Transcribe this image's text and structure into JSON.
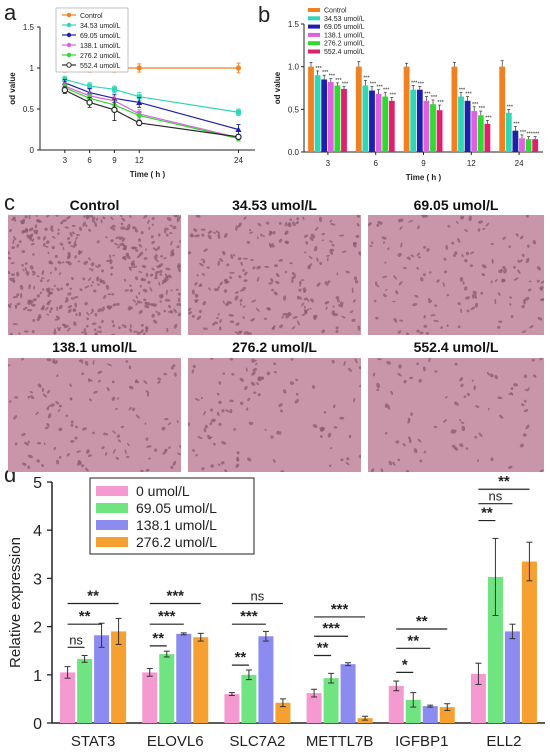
{
  "panels": {
    "a": "a",
    "b": "b",
    "c": "c",
    "d": "d"
  },
  "colors": {
    "Control": "#F08020",
    "34.53 umol/L": "#2ED8B4",
    "69.05 umol/L": "#1F1FAE",
    "138.1 umol/L": "#E060E0",
    "276.2 umol/L": "#30D830",
    "552.4 umol/L": "#E0206A",
    "line_552": "#2A2A2A",
    "d_0": "#F59AD0",
    "d_69": "#70E480",
    "d_138": "#8C8CF0",
    "d_276": "#F5A030",
    "micro_bg": "#C896A8",
    "micro_cell": "#8A5A6E"
  },
  "micrographs": {
    "labels": [
      "Control",
      "34.53 umol/L",
      "69.05 umol/L",
      "138.1 umol/L",
      "276.2 umol/L",
      "552.4  umol/L"
    ],
    "density": [
      1.0,
      0.55,
      0.35,
      0.3,
      0.25,
      0.2
    ]
  },
  "chart_data": [
    {
      "id": "a",
      "type": "line",
      "xlabel": "Time ( h )",
      "ylabel": "od value",
      "x": [
        3,
        6,
        9,
        12,
        24
      ],
      "xlim": [
        0,
        26
      ],
      "ylim": [
        0,
        1.5
      ],
      "yticks": [
        0,
        0.5,
        1,
        1.5
      ],
      "legend_position": "top-left",
      "series": [
        {
          "name": "Control",
          "values": [
            1.0,
            1.0,
            1.0,
            1.0,
            1.0
          ],
          "err": [
            0.05,
            0.05,
            0.05,
            0.05,
            0.06
          ],
          "marker": "circle"
        },
        {
          "name": "34.53 umol/L",
          "values": [
            0.86,
            0.78,
            0.74,
            0.65,
            0.46
          ],
          "err": [
            0.04,
            0.04,
            0.04,
            0.05,
            0.04
          ],
          "marker": "square"
        },
        {
          "name": "69.05 umol/L",
          "values": [
            0.82,
            0.7,
            0.63,
            0.58,
            0.25
          ],
          "err": [
            0.04,
            0.05,
            0.05,
            0.06,
            0.06
          ],
          "marker": "triangle-up"
        },
        {
          "name": "138.1 umol/L",
          "values": [
            0.78,
            0.66,
            0.6,
            0.44,
            0.15
          ],
          "err": [
            0.04,
            0.05,
            0.06,
            0.05,
            0.04
          ],
          "marker": "triangle-down"
        },
        {
          "name": "276.2 umol/L",
          "values": [
            0.76,
            0.63,
            0.55,
            0.42,
            0.14
          ],
          "err": [
            0.04,
            0.05,
            0.06,
            0.05,
            0.03
          ],
          "marker": "diamond"
        },
        {
          "name": "552.4 umol/L",
          "values": [
            0.73,
            0.58,
            0.49,
            0.33,
            0.16
          ],
          "err": [
            0.04,
            0.06,
            0.13,
            0.03,
            0.03
          ],
          "marker": "circle-open"
        }
      ]
    },
    {
      "id": "b",
      "type": "bar",
      "xlabel": "Time ( h )",
      "ylabel": "od value",
      "categories": [
        "3",
        "6",
        "9",
        "12",
        "24"
      ],
      "ylim": [
        0,
        1.5
      ],
      "yticks": [
        0.0,
        0.5,
        1.0,
        1.5
      ],
      "legend_position": "top-left",
      "series": [
        {
          "name": "Control",
          "values": [
            1.0,
            1.0,
            1.0,
            1.0,
            1.0
          ],
          "err": [
            0.05,
            0.06,
            0.04,
            0.05,
            0.07
          ]
        },
        {
          "name": "34.53 umol/L",
          "values": [
            0.9,
            0.78,
            0.73,
            0.65,
            0.46
          ],
          "err": [
            0.05,
            0.06,
            0.05,
            0.05,
            0.04
          ]
        },
        {
          "name": "69.05 umol/L",
          "values": [
            0.85,
            0.72,
            0.73,
            0.6,
            0.25
          ],
          "err": [
            0.05,
            0.05,
            0.04,
            0.05,
            0.05
          ]
        },
        {
          "name": "138.1 umol/L",
          "values": [
            0.82,
            0.68,
            0.6,
            0.48,
            0.16
          ],
          "err": [
            0.04,
            0.05,
            0.05,
            0.05,
            0.04
          ]
        },
        {
          "name": "276.2 umol/L",
          "values": [
            0.78,
            0.65,
            0.56,
            0.43,
            0.15
          ],
          "err": [
            0.03,
            0.05,
            0.05,
            0.05,
            0.03
          ]
        },
        {
          "name": "552.4 umol/L",
          "values": [
            0.74,
            0.6,
            0.49,
            0.33,
            0.15
          ],
          "err": [
            0.03,
            0.04,
            0.06,
            0.04,
            0.03
          ]
        }
      ],
      "sig_label": "***"
    },
    {
      "id": "d",
      "type": "bar",
      "ylabel": "Relative expression",
      "categories": [
        "STAT3",
        "ELOVL6",
        "SLC7A2",
        "METTL7B",
        "IGFBP1",
        "ELL2"
      ],
      "ylim": [
        0,
        5
      ],
      "yticks": [
        0,
        1,
        2,
        3,
        4,
        5
      ],
      "legend_position": "top-left",
      "series": [
        {
          "name": "0 umol/L",
          "values": [
            1.05,
            1.05,
            0.6,
            0.62,
            0.77,
            1.02
          ],
          "err": [
            0.12,
            0.08,
            0.03,
            0.08,
            0.1,
            0.22
          ]
        },
        {
          "name": "69.05 umol/L",
          "values": [
            1.33,
            1.43,
            1.0,
            0.93,
            0.48,
            3.03
          ],
          "err": [
            0.07,
            0.06,
            0.1,
            0.1,
            0.15,
            0.8
          ]
        },
        {
          "name": "138.1 umol/L",
          "values": [
            1.82,
            1.85,
            1.8,
            1.22,
            0.35,
            1.9
          ],
          "err": [
            0.25,
            0.02,
            0.1,
            0.03,
            0.02,
            0.15
          ]
        },
        {
          "name": "276.2 umol/L",
          "values": [
            1.9,
            1.78,
            0.42,
            0.1,
            0.33,
            3.35
          ],
          "err": [
            0.27,
            0.08,
            0.08,
            0.04,
            0.07,
            0.4
          ]
        }
      ],
      "significance": [
        {
          "group": 0,
          "to": 1,
          "label": "ns",
          "y": 1.57
        },
        {
          "group": 0,
          "to": 2,
          "label": "**",
          "y": 2.05
        },
        {
          "group": 0,
          "to": 3,
          "label": "**",
          "y": 2.48
        },
        {
          "group": 1,
          "to": 1,
          "label": "**",
          "y": 1.6
        },
        {
          "group": 1,
          "to": 2,
          "label": "***",
          "y": 2.05
        },
        {
          "group": 1,
          "to": 3,
          "label": "***",
          "y": 2.48
        },
        {
          "group": 2,
          "to": 1,
          "label": "**",
          "y": 1.2
        },
        {
          "group": 2,
          "to": 2,
          "label": "***",
          "y": 2.05
        },
        {
          "group": 2,
          "to": 3,
          "label": "ns",
          "y": 2.48
        },
        {
          "group": 3,
          "to": 1,
          "label": "**",
          "y": 1.4
        },
        {
          "group": 3,
          "to": 2,
          "label": "***",
          "y": 1.8
        },
        {
          "group": 3,
          "to": 3,
          "label": "***",
          "y": 2.2
        },
        {
          "group": 4,
          "to": 1,
          "label": "*",
          "y": 1.05
        },
        {
          "group": 4,
          "to": 2,
          "label": "**",
          "y": 1.55
        },
        {
          "group": 4,
          "to": 3,
          "label": "**",
          "y": 1.95
        },
        {
          "group": 5,
          "to": 1,
          "label": "**",
          "y": 4.2
        },
        {
          "group": 5,
          "to": 2,
          "label": "ns",
          "y": 4.55
        },
        {
          "group": 5,
          "to": 3,
          "label": "**",
          "y": 4.85
        }
      ]
    }
  ]
}
